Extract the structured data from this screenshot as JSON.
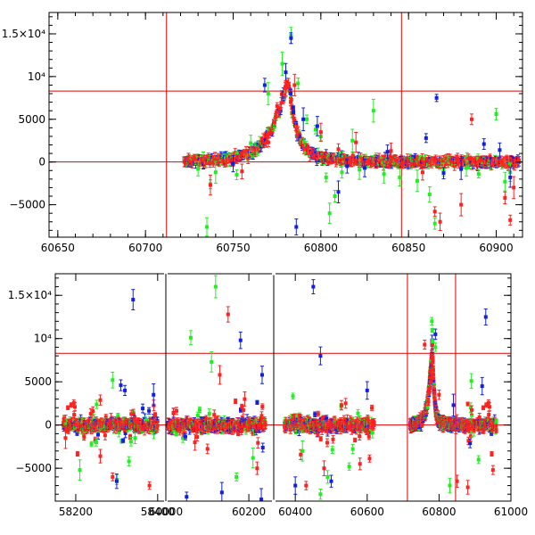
{
  "colors": {
    "red": "#ff2020",
    "green": "#22ee22",
    "blue": "#1020e0",
    "ref_line": "#e00000",
    "frame": "#000000"
  },
  "chart_data": [
    {
      "type": "scatter",
      "panel": "top",
      "xlim": [
        60645,
        60915
      ],
      "ylim": [
        -8800,
        17500
      ],
      "x_ticks": [
        {
          "v": 60650,
          "label": "60650"
        },
        {
          "v": 60700,
          "label": "60700"
        },
        {
          "v": 60750,
          "label": "60750"
        },
        {
          "v": 60800,
          "label": "60800"
        },
        {
          "v": 60850,
          "label": "60850"
        },
        {
          "v": 60900,
          "label": "60900"
        }
      ],
      "y_ticks": [
        {
          "v": -5000,
          "label": "−5000"
        },
        {
          "v": 0,
          "label": "0"
        },
        {
          "v": 5000,
          "label": "5000"
        },
        {
          "v": 10000,
          "label": "10⁴"
        },
        {
          "v": 15000,
          "label": "1.5×10⁴"
        }
      ],
      "h_lines": [
        0,
        8300
      ],
      "v_lines": [
        60712,
        60846
      ],
      "peak": {
        "t0": 60781,
        "amp": 9500,
        "tau_rise": 9,
        "tau_fall": 5,
        "x_start": 60722,
        "x_end": 60913
      },
      "series": [
        {
          "color": "green",
          "points": [
            [
              60730,
              -800
            ],
            [
              60735,
              -7600
            ],
            [
              60737,
              -2600
            ],
            [
              60740,
              -1200
            ],
            [
              60752,
              -1500
            ],
            [
              60760,
              2200
            ],
            [
              60770,
              8000
            ],
            [
              60778,
              11500
            ],
            [
              60783,
              14800
            ],
            [
              60787,
              9200
            ],
            [
              60792,
              5000
            ],
            [
              60797,
              3800
            ],
            [
              60800,
              3000
            ],
            [
              60803,
              -1800
            ],
            [
              60805,
              -6000
            ],
            [
              60808,
              -4000
            ],
            [
              60812,
              -1200
            ],
            [
              60818,
              2500
            ],
            [
              60822,
              -900
            ],
            [
              60830,
              6000
            ],
            [
              60836,
              -1400
            ],
            [
              60845,
              -1800
            ],
            [
              60855,
              -2200
            ],
            [
              60862,
              -3800
            ],
            [
              60865,
              -7200
            ],
            [
              60870,
              -900
            ],
            [
              60883,
              -700
            ],
            [
              60890,
              -1400
            ],
            [
              60900,
              5600
            ],
            [
              60905,
              -2300
            ],
            [
              60908,
              -1200
            ]
          ]
        },
        {
          "color": "blue",
          "points": [
            [
              60750,
              -200
            ],
            [
              60768,
              9000
            ],
            [
              60780,
              10500
            ],
            [
              60783,
              14500
            ],
            [
              60786,
              -7600
            ],
            [
              60790,
              5000
            ],
            [
              60798,
              4200
            ],
            [
              60810,
              -3500
            ],
            [
              60815,
              -500
            ],
            [
              60825,
              -700
            ],
            [
              60838,
              1200
            ],
            [
              60860,
              2800
            ],
            [
              60866,
              7500
            ],
            [
              60870,
              -1300
            ],
            [
              60880,
              -800
            ],
            [
              60893,
              2100
            ],
            [
              60902,
              1400
            ],
            [
              60908,
              -1800
            ]
          ]
        },
        {
          "color": "red",
          "points": [
            [
              60737,
              -2700
            ],
            [
              60755,
              -1100
            ],
            [
              60780,
              8600
            ],
            [
              60785,
              9000
            ],
            [
              60800,
              3500
            ],
            [
              60810,
              1500
            ],
            [
              60820,
              2300
            ],
            [
              60840,
              1300
            ],
            [
              60858,
              -1200
            ],
            [
              60865,
              -5800
            ],
            [
              60868,
              -7000
            ],
            [
              60880,
              -5000
            ],
            [
              60886,
              5000
            ],
            [
              60905,
              -4200
            ],
            [
              60908,
              -6800
            ],
            [
              60910,
              -3000
            ]
          ]
        }
      ]
    },
    {
      "type": "scatter",
      "panel": "bottom",
      "segments": [
        {
          "xlim": [
            58150,
            58420
          ],
          "noise_x": [
            58170,
            58400
          ]
        },
        {
          "xlim": [
            60000,
            60260
          ],
          "noise_x": [
            60005,
            60240
          ]
        },
        {
          "xlim": [
            60340,
            61000
          ],
          "noise_x": [
            60370,
            60620
          ]
        },
        {
          "xlim": [
            60340,
            61000
          ],
          "noise_x": [
            60880,
            60960
          ]
        }
      ],
      "ylim": [
        -8800,
        17500
      ],
      "x_ticks": [
        {
          "seg": 0,
          "v": 58200,
          "label": "58200"
        },
        {
          "seg": 0,
          "v": 58400,
          "label": "58400"
        },
        {
          "seg": 1,
          "v": 60000,
          "label": "60000"
        },
        {
          "seg": 1,
          "v": 60200,
          "label": "60200"
        },
        {
          "seg": 2,
          "v": 60400,
          "label": "60400"
        },
        {
          "seg": 2,
          "v": 60600,
          "label": "60600"
        },
        {
          "seg": 2,
          "v": 60800,
          "label": "60800"
        },
        {
          "seg": 2,
          "v": 61000,
          "label": "61000"
        }
      ],
      "y_ticks": [
        {
          "v": -5000,
          "label": "−5000"
        },
        {
          "v": 0,
          "label": "0"
        },
        {
          "v": 5000,
          "label": "5000"
        },
        {
          "v": 10000,
          "label": "10⁴"
        },
        {
          "v": 15000,
          "label": "1.5×10⁴"
        }
      ],
      "h_lines": [
        0,
        8300
      ],
      "v_lines": [
        60712,
        60846
      ],
      "peak": {
        "seg": 2,
        "t0": 60781,
        "amp": 9500,
        "tau_rise": 9,
        "tau_fall": 5,
        "x_start": 60720,
        "x_end": 60880
      },
      "series": [
        {
          "color": "green",
          "points": [
            [
              58210,
              -5200
            ],
            [
              58250,
              -2000
            ],
            [
              58290,
              5200
            ],
            [
              58300,
              -6300
            ],
            [
              58330,
              -4200
            ],
            [
              58345,
              -1500
            ],
            [
              60060,
              10100
            ],
            [
              60110,
              7300
            ],
            [
              60120,
              16000
            ],
            [
              60170,
              -6000
            ],
            [
              60210,
              -3800
            ],
            [
              60420,
              -3000
            ],
            [
              60470,
              -8000
            ],
            [
              60490,
              -6000
            ],
            [
              60550,
              -4800
            ],
            [
              60780,
              12000
            ],
            [
              60790,
              9000
            ],
            [
              60830,
              -7000
            ],
            [
              60890,
              5100
            ],
            [
              60910,
              -4000
            ]
          ]
        },
        {
          "color": "blue",
          "points": [
            [
              58300,
              -6500
            ],
            [
              58310,
              4600
            ],
            [
              58320,
              4000
            ],
            [
              58340,
              14500
            ],
            [
              58390,
              3500
            ],
            [
              60050,
              -8300
            ],
            [
              60135,
              -7800
            ],
            [
              60180,
              9800
            ],
            [
              60230,
              -8600
            ],
            [
              60232,
              5800
            ],
            [
              60400,
              -7000
            ],
            [
              60450,
              16000
            ],
            [
              60470,
              8000
            ],
            [
              60500,
              -6500
            ],
            [
              60600,
              4000
            ],
            [
              60790,
              10500
            ],
            [
              60840,
              2300
            ],
            [
              60920,
              4500
            ],
            [
              60930,
              12500
            ]
          ]
        },
        {
          "color": "red",
          "points": [
            [
              58175,
              -1500
            ],
            [
              58260,
              -3600
            ],
            [
              58290,
              -6000
            ],
            [
              58380,
              -7000
            ],
            [
              60070,
              -2000
            ],
            [
              60130,
              5800
            ],
            [
              60150,
              12800
            ],
            [
              60190,
              3000
            ],
            [
              60220,
              -5000
            ],
            [
              60430,
              -7000
            ],
            [
              60480,
              -5000
            ],
            [
              60580,
              -4500
            ],
            [
              60760,
              9300
            ],
            [
              60800,
              3500
            ],
            [
              60850,
              -6500
            ],
            [
              60880,
              -7200
            ],
            [
              60950,
              -5200
            ]
          ]
        }
      ]
    }
  ]
}
